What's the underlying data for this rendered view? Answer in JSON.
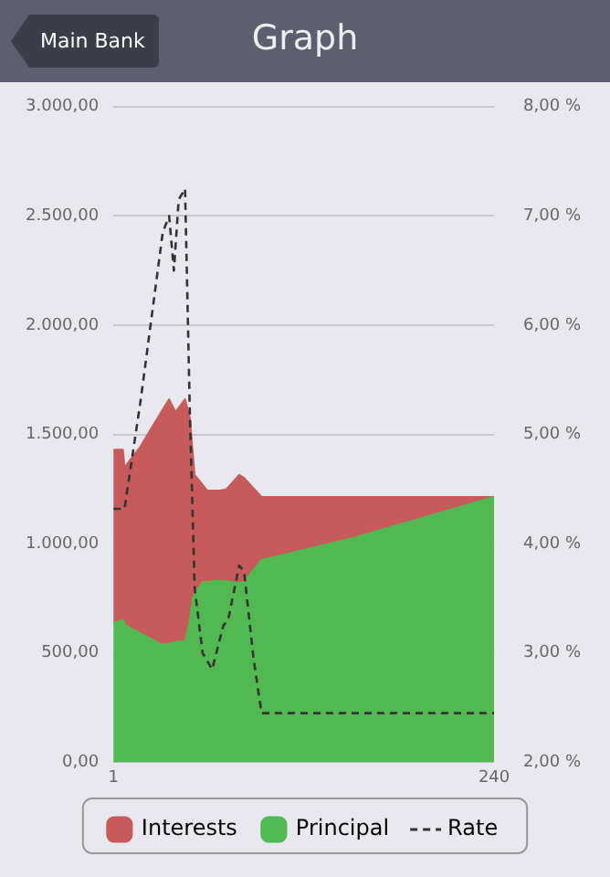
{
  "chart_data": {
    "type": "area",
    "title": "Graph",
    "annotations": [
      "Main Bank"
    ],
    "stacked": true,
    "x": [
      1,
      7,
      8,
      18,
      31,
      36,
      40,
      46,
      49,
      51,
      52,
      57,
      60,
      68,
      72,
      80,
      83,
      94,
      152,
      240
    ],
    "xlim": [
      1,
      240
    ],
    "xticks": [
      1,
      240
    ],
    "ylim": [
      0,
      3000
    ],
    "yticks": [
      {
        "value": 0,
        "label": "0,00"
      },
      {
        "value": 500,
        "label": "500,00"
      },
      {
        "value": 1000,
        "label": "1.000,00"
      },
      {
        "value": 1500,
        "label": "1.500,00"
      },
      {
        "value": 2000,
        "label": "2.000,00"
      },
      {
        "value": 2500,
        "label": "2.500,00"
      },
      {
        "value": 3000,
        "label": "3.000,00"
      }
    ],
    "y2lim": [
      2,
      8
    ],
    "y2ticks": [
      {
        "value": 2,
        "label": "2,00 %"
      },
      {
        "value": 3,
        "label": "3,00 %"
      },
      {
        "value": 4,
        "label": "4,00 %"
      },
      {
        "value": 5,
        "label": "5,00 %"
      },
      {
        "value": 6,
        "label": "6,00 %"
      },
      {
        "value": 7,
        "label": "7,00 %"
      },
      {
        "value": 8,
        "label": "8,00 %"
      }
    ],
    "grid": "y",
    "legend": "bottom",
    "series": [
      {
        "name": "Principal",
        "color": "#52b952",
        "values": [
          638,
          652,
          629,
          590,
          540,
          543,
          551,
          551,
          650,
          753,
          770,
          825,
          826,
          830,
          828,
          820,
          825,
          926,
          1027,
          1214
        ]
      },
      {
        "name": "Interests",
        "color": "#c75b5b",
        "values": [
          792,
          778,
          721,
          855,
          1063,
          1118,
          1052,
          1110,
          925,
          647,
          545,
          445,
          417,
          413,
          422,
          495,
          476,
          288,
          187,
          0
        ]
      },
      {
        "name": "Rate",
        "type": "line",
        "axis": "y2",
        "color": "#333333",
        "line_style": "dashed",
        "marker": "none",
        "x": [
          1,
          8,
          18,
          32,
          36,
          39,
          42,
          46,
          49,
          52,
          57,
          63,
          70,
          73,
          80,
          83,
          89,
          94,
          240
        ],
        "values": [
          4.32,
          4.32,
          5.3,
          6.85,
          7.0,
          6.5,
          7.15,
          7.25,
          5.2,
          3.6,
          3.0,
          2.85,
          3.25,
          3.3,
          3.8,
          3.75,
          2.95,
          2.45,
          2.45
        ]
      }
    ]
  }
}
